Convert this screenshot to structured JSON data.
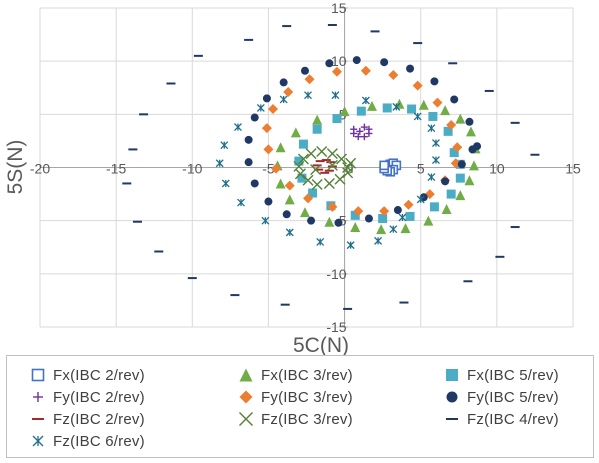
{
  "chart_data": {
    "type": "scatter",
    "title": "",
    "xlabel": "5C(N)",
    "ylabel": "5S(N)",
    "xlim": [
      -20,
      15
    ],
    "ylim": [
      -15,
      15
    ],
    "x_ticks": [
      -20,
      -15,
      -10,
      -5,
      0,
      5,
      10,
      15
    ],
    "y_ticks": [
      -15,
      -10,
      -5,
      0,
      5,
      10,
      15
    ],
    "x_tick_labels": [
      "-20",
      "-15",
      "-10",
      "-5",
      "0",
      "5",
      "10",
      "15"
    ],
    "y_tick_labels": [
      "-15",
      "-10",
      "-5",
      "0",
      "5",
      "10",
      "15"
    ],
    "grid": "major gridlines on both axes",
    "legend_position": "bottom",
    "series": [
      {
        "name": "Fx(IBC 2/rev)",
        "marker": "square-open",
        "color": "#4472c4",
        "x": [
          2.8,
          3.0,
          3.2,
          3.4,
          3.2,
          3.0,
          2.8,
          2.6,
          2.6
        ],
        "y": [
          0.0,
          0.3,
          0.4,
          0.2,
          -0.2,
          -0.4,
          -0.3,
          -0.1,
          0.2
        ]
      },
      {
        "name": "Fx(IBC 3/rev)",
        "marker": "triangle",
        "color": "#70ad47",
        "x": [
          8.5,
          8.6,
          8.3,
          7.6,
          6.6,
          5.2,
          3.6,
          1.8,
          0.0,
          -1.8,
          -3.2,
          -4.2,
          -4.4,
          -4.2,
          -3.6,
          -2.6,
          -1.0,
          0.7,
          2.4,
          4.0,
          5.5,
          6.7,
          7.6,
          8.2
        ],
        "y": [
          0.2,
          1.8,
          3.4,
          4.6,
          5.4,
          5.9,
          6.0,
          5.8,
          5.3,
          4.5,
          3.3,
          1.9,
          0.2,
          -1.5,
          -3.0,
          -4.2,
          -5.1,
          -5.6,
          -5.8,
          -5.7,
          -5.0,
          -3.9,
          -2.6,
          -1.2
        ]
      },
      {
        "name": "Fx(IBC 5/rev)",
        "marker": "square",
        "color": "#4bacc6",
        "x": [
          7.2,
          6.8,
          5.8,
          4.4,
          2.8,
          1.1,
          -0.5,
          -1.8,
          -2.7,
          -3.0,
          -2.8,
          -2.1,
          -0.9,
          0.7,
          2.5,
          4.3,
          5.9,
          7.0,
          7.6,
          7.6
        ],
        "y": [
          1.4,
          3.4,
          4.8,
          5.5,
          5.6,
          5.3,
          4.6,
          3.6,
          2.2,
          0.6,
          -1.0,
          -2.4,
          -3.6,
          -4.5,
          -4.8,
          -4.6,
          -3.7,
          -2.5,
          -1.0,
          0.3
        ]
      },
      {
        "name": "Fy(IBC 2/rev)",
        "marker": "plus",
        "color": "#7030a0",
        "x": [
          1.0,
          1.3,
          1.6,
          1.6,
          1.3,
          0.9,
          0.6,
          0.6
        ],
        "y": [
          3.4,
          3.8,
          3.6,
          3.2,
          2.9,
          2.9,
          3.2,
          3.6
        ]
      },
      {
        "name": "Fy(IBC 3/rev)",
        "marker": "diamond",
        "color": "#ed7d31",
        "x": [
          7.4,
          7.0,
          6.1,
          4.8,
          3.2,
          1.4,
          -0.5,
          -2.3,
          -3.7,
          -4.7,
          -5.1,
          -5.0,
          -4.5,
          -3.6,
          -2.4,
          -0.8,
          0.9,
          2.6,
          4.2,
          5.6,
          6.6,
          7.3
        ],
        "y": [
          1.9,
          4.0,
          6.1,
          7.7,
          8.7,
          9.1,
          9.0,
          8.3,
          7.1,
          5.5,
          3.7,
          1.7,
          -0.1,
          -1.7,
          -2.9,
          -3.7,
          -4.1,
          -4.1,
          -3.5,
          -2.5,
          -1.2,
          0.4
        ]
      },
      {
        "name": "Fy(IBC 5/rev)",
        "marker": "circle",
        "color": "#203864",
        "x": [
          8.7,
          8.2,
          7.2,
          5.9,
          4.3,
          2.6,
          0.8,
          -1.0,
          -2.6,
          -4.0,
          -5.1,
          -5.9,
          -6.3,
          -6.3,
          -5.9,
          -5.0,
          -3.8,
          -2.2,
          -0.4,
          1.6,
          3.5,
          5.2,
          6.6,
          7.7,
          8.4
        ],
        "y": [
          2.0,
          4.3,
          6.4,
          8.1,
          9.3,
          9.9,
          10.1,
          9.8,
          9.1,
          8.0,
          6.5,
          4.7,
          2.6,
          0.5,
          -1.5,
          -3.2,
          -4.4,
          -5.0,
          -5.2,
          -4.8,
          -4.0,
          -2.8,
          -1.3,
          0.3,
          1.7
        ]
      },
      {
        "name": "Fz(IBC 2/rev)",
        "marker": "dash",
        "color": "#a5282c",
        "x": [
          -1.3,
          -1.0,
          -0.8,
          -0.9,
          -1.2,
          -1.6,
          -1.8,
          -1.7
        ],
        "y": [
          -0.5,
          -0.3,
          0.1,
          0.5,
          0.7,
          0.6,
          0.2,
          -0.2
        ]
      },
      {
        "name": "Fz(IBC 3/rev)",
        "marker": "x",
        "color": "#548235",
        "x": [
          0.2,
          -0.2,
          -0.8,
          -1.5,
          -2.2,
          -2.7,
          -3.0,
          -2.9,
          -2.4,
          -1.8,
          -1.0,
          -0.3,
          0.2,
          0.4,
          -0.8,
          -1.9
        ],
        "y": [
          0.0,
          0.8,
          1.3,
          1.5,
          1.3,
          0.8,
          0.1,
          -0.6,
          -1.2,
          -1.6,
          -1.5,
          -1.1,
          -0.5,
          0.4,
          0.2,
          -0.2
        ]
      },
      {
        "name": "Fz(IBC 4/rev)",
        "marker": "dash",
        "color": "#1f3864",
        "x": [
          12.5,
          11.2,
          9.5,
          7.1,
          4.8,
          2.0,
          -0.8,
          -3.8,
          -6.3,
          -9.6,
          -11.4,
          -13.2,
          -13.9,
          -14.3,
          -13.6,
          -12.2,
          -10.0,
          -7.2,
          -3.9,
          0.2,
          3.9,
          8.1,
          10.2,
          11.2
        ],
        "y": [
          1.2,
          4.2,
          7.2,
          9.8,
          11.7,
          12.8,
          13.4,
          13.3,
          12.0,
          10.5,
          7.9,
          5.0,
          1.7,
          -1.5,
          -5.1,
          -7.9,
          -10.4,
          -12.0,
          -12.9,
          -13.3,
          -12.7,
          -10.7,
          -8.4,
          -5.6
        ]
      },
      {
        "name": "Fz(IBC 6/rev)",
        "marker": "asterisk",
        "color": "#1f6e8c",
        "x": [
          3.8,
          5.0,
          5.7,
          6.0,
          6.0,
          5.7,
          4.8,
          3.4,
          1.4,
          -0.6,
          -2.4,
          -4.0,
          -5.5,
          -7.0,
          -7.9,
          -8.2,
          -7.8,
          -6.8,
          -5.2,
          -3.6,
          -1.6,
          0.4,
          2.2,
          3.2
        ],
        "y": [
          -4.7,
          -3.0,
          -0.9,
          0.7,
          2.3,
          3.7,
          4.8,
          5.7,
          6.3,
          6.8,
          6.8,
          6.4,
          5.6,
          3.8,
          2.1,
          0.4,
          -1.5,
          -3.3,
          -5.0,
          -6.1,
          -7.0,
          -7.3,
          -6.9,
          -5.8
        ]
      }
    ]
  }
}
